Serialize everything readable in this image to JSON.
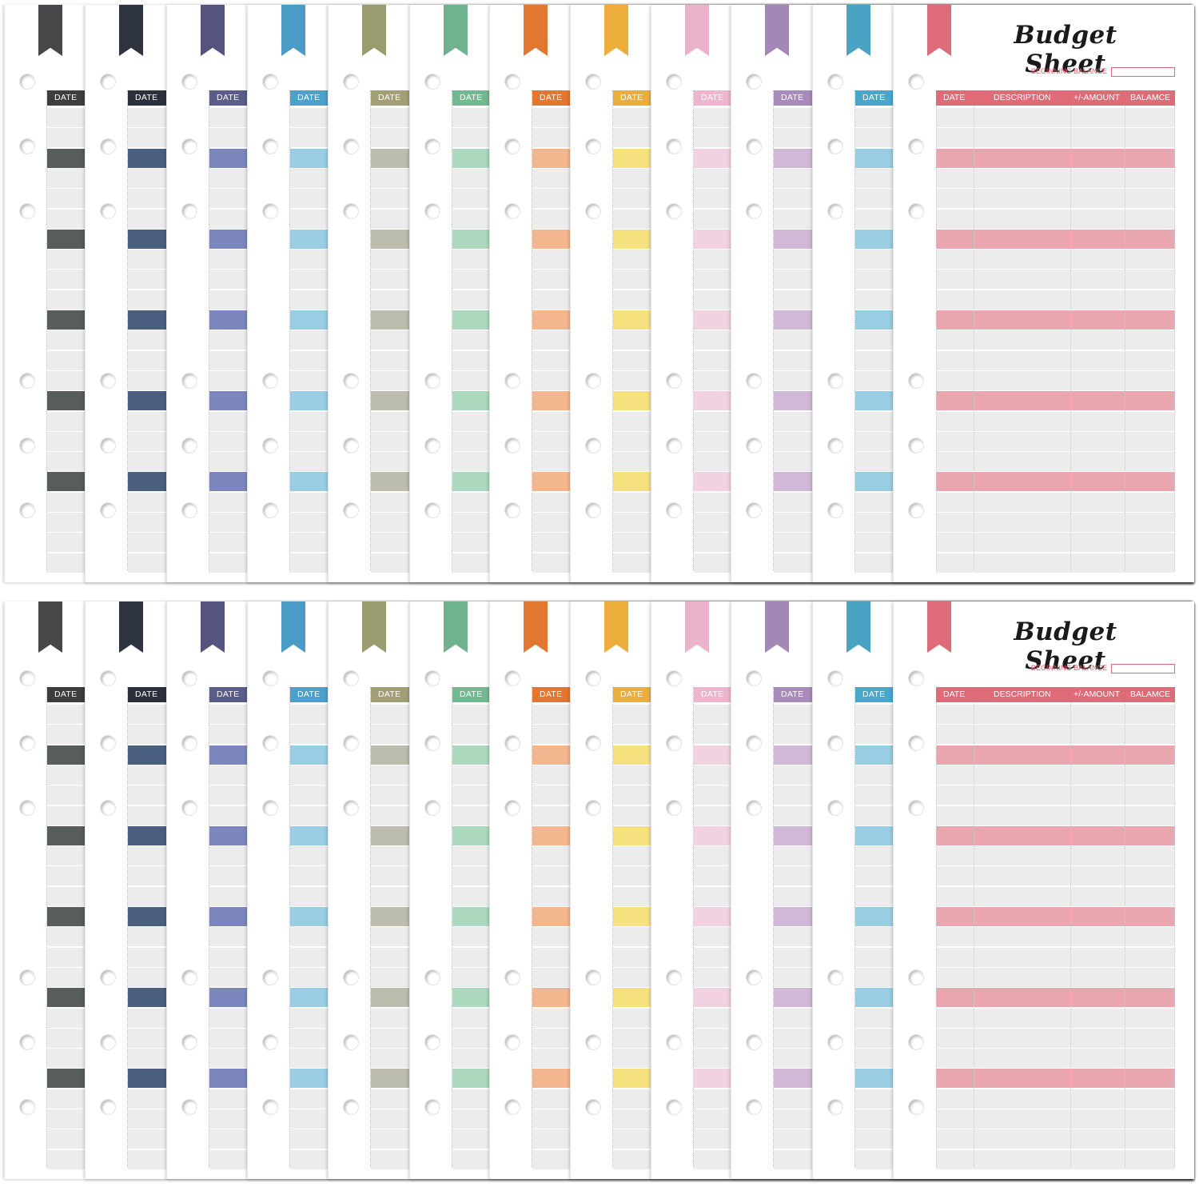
{
  "image_alt": "Budget Sheet",
  "sheet": {
    "title": "Budget Sheet",
    "beginning_balance_label": "BEGINNING BALANCE",
    "columns": [
      "DATE",
      "DESCRIPTION",
      "+/-AMOUNT",
      "BALAMCE"
    ],
    "date_label": "DATE"
  },
  "colors": [
    {
      "name": "charcoal",
      "ribbon": "#47474a",
      "head": "#3d3d3f",
      "band": "#575e5a"
    },
    {
      "name": "navy",
      "ribbon": "#2e3340",
      "head": "#2b303c",
      "band": "#4a5f80"
    },
    {
      "name": "indigo",
      "ribbon": "#54547e",
      "head": "#5a5c8a",
      "band": "#7c88bd"
    },
    {
      "name": "sky-blue",
      "ribbon": "#4a9cc7",
      "head": "#4aa1cb",
      "band": "#98cde3"
    },
    {
      "name": "olive",
      "ribbon": "#9b9b70",
      "head": "#a29f77",
      "band": "#bdbdae"
    },
    {
      "name": "mint",
      "ribbon": "#6fb38e",
      "head": "#72b992",
      "band": "#acd8bd"
    },
    {
      "name": "orange",
      "ribbon": "#e17731",
      "head": "#e3772f",
      "band": "#f4b68e"
    },
    {
      "name": "amber",
      "ribbon": "#ecad3b",
      "head": "#ebae3d",
      "band": "#f5e27f"
    },
    {
      "name": "pink",
      "ribbon": "#eab2cb",
      "head": "#edb6ce",
      "band": "#f2d2e0"
    },
    {
      "name": "lavender",
      "ribbon": "#a387b7",
      "head": "#a98bbb",
      "band": "#d0b8d6"
    },
    {
      "name": "teal-blue",
      "ribbon": "#4aa2c5",
      "head": "#4aa7cc",
      "band": "#98cde3"
    },
    {
      "name": "rose",
      "ribbon": "#df6a78",
      "head": "#df6a78",
      "band": "#eaa6ae"
    }
  ]
}
